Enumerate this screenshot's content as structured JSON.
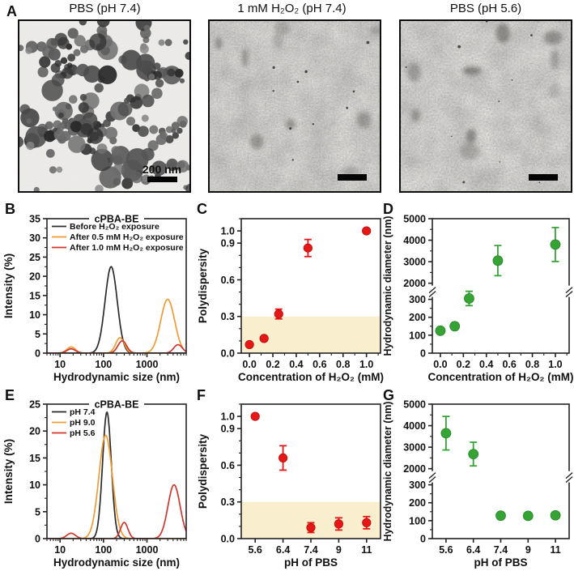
{
  "panels": {
    "a": "A",
    "b": "B",
    "c": "C",
    "d": "D",
    "e": "E",
    "f": "F",
    "g": "G"
  },
  "colors": {
    "axis": "#222222",
    "black_line": "#2b2b2b",
    "orange_line": "#f09c33",
    "red_line": "#ce3630",
    "red_marker": "#e81717",
    "red_marker_edge": "#b50f08",
    "green_marker": "#35a435",
    "green_marker_edge": "#2a822a",
    "band": "#f9efce"
  },
  "panel_a": {
    "images": [
      {
        "title": "PBS (pH 7.4)",
        "scalebar_text": "200 nm",
        "style": "particles"
      },
      {
        "title": "1 mM H₂O₂ (pH 7.4)",
        "scalebar_text": "",
        "style": "noise"
      },
      {
        "title": "PBS (pH 5.6)",
        "scalebar_text": "",
        "style": "noise"
      }
    ]
  },
  "chart_data": [
    {
      "panel": "b",
      "type": "line",
      "title": "cPBA-BE",
      "xlabel": "Hydrodynamic size (nm)",
      "ylabel": "Intensity (%)",
      "xscale": "log",
      "xlim": [
        5,
        8000
      ],
      "ylim": [
        0,
        35
      ],
      "xticks": [
        10,
        100,
        1000
      ],
      "xtick_labels": [
        "10",
        "100",
        "1000"
      ],
      "yticks": [
        0,
        5,
        10,
        15,
        20,
        25,
        30,
        35
      ],
      "yminor": 2.5,
      "legend_position": "top-left",
      "grid": false,
      "series": [
        {
          "name": "Before H₂O₂ exposure",
          "color_key": "black_line",
          "peaks_log_gauss": [
            [
              150,
              22.5,
              0.14
            ]
          ]
        },
        {
          "name": "After 0.5 mM H₂O₂ exposure",
          "color_key": "orange_line",
          "peaks_log_gauss": [
            [
              18,
              1.6,
              0.1
            ],
            [
              240,
              4.0,
              0.1
            ],
            [
              3000,
              14,
              0.16
            ]
          ]
        },
        {
          "name": "After 1.0 mM H₂O₂ exposure",
          "color_key": "red_line",
          "peaks_log_gauss": [
            [
              18,
              1.1,
              0.1
            ],
            [
              270,
              3.2,
              0.1
            ],
            [
              5200,
              2.2,
              0.1
            ]
          ]
        }
      ]
    },
    {
      "panel": "c",
      "type": "scatter",
      "xlabel": "Concentration of H₂O₂ (mM)",
      "ylabel": "Polydispersity",
      "xlim": [
        -0.07,
        1.12
      ],
      "ylim": [
        0,
        1.1
      ],
      "xticks": [
        0,
        0.2,
        0.4,
        0.6,
        0.8,
        1.0
      ],
      "xtick_labels": [
        "0.0",
        "0.2",
        "0.4",
        "0.6",
        "0.8",
        "1.0"
      ],
      "xminor": 0.1,
      "yticks": [
        0,
        0.3,
        0.6,
        0.9,
        1.0
      ],
      "ytick_labels": [
        "0.0",
        "0.3",
        "0.6",
        "0.9",
        "1.0"
      ],
      "yminor": 0.1,
      "band": [
        0,
        0.3
      ],
      "marker_key": "red_marker",
      "marker_edge_key": "red_marker_edge",
      "points": [
        [
          0,
          0.07,
          0.02
        ],
        [
          0.125,
          0.12,
          0.02
        ],
        [
          0.25,
          0.32,
          0.04
        ],
        [
          0.5,
          0.86,
          0.07
        ],
        [
          1.0,
          1.0,
          0.015
        ]
      ]
    },
    {
      "panel": "d",
      "type": "broken",
      "xlabel": "Concentration of H₂O₂ (mM)",
      "ylabel": "Hydrodynamic diameter (nm)",
      "xlim": [
        -0.07,
        1.12
      ],
      "xticks": [
        0,
        0.2,
        0.4,
        0.6,
        0.8,
        1.0
      ],
      "xtick_labels": [
        "0.0",
        "0.2",
        "0.4",
        "0.6",
        "0.8",
        "1.0"
      ],
      "xminor": 0.1,
      "upper": {
        "lim": [
          2000,
          5000
        ],
        "ticks": [
          2000,
          3000,
          4000,
          5000
        ],
        "tick_labels": [
          "2000",
          "3000",
          "4000",
          "5000"
        ],
        "minor": 500
      },
      "lower": {
        "lim": [
          0,
          300
        ],
        "ticks": [
          0,
          100,
          200,
          300
        ],
        "tick_labels": [
          "0",
          "100",
          "200",
          "300"
        ],
        "minor": 50
      },
      "marker_key": "green_marker",
      "marker_edge_key": "green_marker_edge",
      "points": [
        [
          0,
          125,
          15
        ],
        [
          0.125,
          150,
          12
        ],
        [
          0.25,
          305,
          40
        ],
        [
          0.5,
          3050,
          700
        ],
        [
          1.0,
          3800,
          790
        ]
      ]
    },
    {
      "panel": "e",
      "type": "line",
      "title": "cPBA-BE",
      "xlabel": "Hydrodynamic size (nm)",
      "ylabel": "Intensity (%)",
      "xscale": "log",
      "xlim": [
        5,
        8000
      ],
      "ylim": [
        0,
        25
      ],
      "xticks": [
        10,
        100,
        1000
      ],
      "xtick_labels": [
        "10",
        "100",
        "1000"
      ],
      "yticks": [
        0,
        5,
        10,
        15,
        20,
        25
      ],
      "yminor": 2.5,
      "legend_position": "top-left",
      "grid": false,
      "series": [
        {
          "name": "pH 7.4",
          "color_key": "black_line",
          "peaks_log_gauss": [
            [
              120,
              23.5,
              0.1
            ]
          ]
        },
        {
          "name": "pH 9.0",
          "color_key": "orange_line",
          "peaks_log_gauss": [
            [
              112,
              19.2,
              0.155
            ]
          ]
        },
        {
          "name": "pH 5.6",
          "color_key": "red_line",
          "peaks_log_gauss": [
            [
              18,
              1.0,
              0.1
            ],
            [
              300,
              3.0,
              0.085
            ],
            [
              4200,
              10,
              0.14
            ]
          ]
        }
      ]
    },
    {
      "panel": "f",
      "type": "scatter",
      "categorical": true,
      "categories": [
        "5.6",
        "6.4",
        "7.4",
        "9",
        "11"
      ],
      "xlabel": "pH of PBS",
      "ylabel": "Polydispersity",
      "ylim": [
        0,
        1.1
      ],
      "yticks": [
        0,
        0.3,
        0.6,
        0.9,
        1.0
      ],
      "ytick_labels": [
        "0.0",
        "0.3",
        "0.6",
        "0.9",
        "1.0"
      ],
      "yminor": 0.1,
      "band": [
        0,
        0.3
      ],
      "marker_key": "red_marker",
      "marker_edge_key": "red_marker_edge",
      "points": [
        [
          0,
          1.0,
          0.015
        ],
        [
          1,
          0.66,
          0.1
        ],
        [
          2,
          0.09,
          0.04
        ],
        [
          3,
          0.12,
          0.05
        ],
        [
          4,
          0.13,
          0.05
        ]
      ]
    },
    {
      "panel": "g",
      "type": "broken",
      "categorical": true,
      "categories": [
        "5.6",
        "6.4",
        "7.4",
        "9",
        "11"
      ],
      "xlabel": "pH of PBS",
      "ylabel": "Hydrodynamic diameter (nm)",
      "upper": {
        "lim": [
          2000,
          5000
        ],
        "ticks": [
          2000,
          3000,
          4000,
          5000
        ],
        "tick_labels": [
          "2000",
          "3000",
          "4000",
          "5000"
        ],
        "minor": 500
      },
      "lower": {
        "lim": [
          0,
          300
        ],
        "ticks": [
          0,
          100,
          200,
          300
        ],
        "tick_labels": [
          "0",
          "100",
          "200",
          "300"
        ],
        "minor": 50
      },
      "marker_key": "green_marker",
      "marker_edge_key": "green_marker_edge",
      "points": [
        [
          0,
          3650,
          780
        ],
        [
          1,
          2680,
          550
        ],
        [
          2,
          128,
          0
        ],
        [
          3,
          127,
          0
        ],
        [
          4,
          130,
          0
        ]
      ]
    }
  ]
}
